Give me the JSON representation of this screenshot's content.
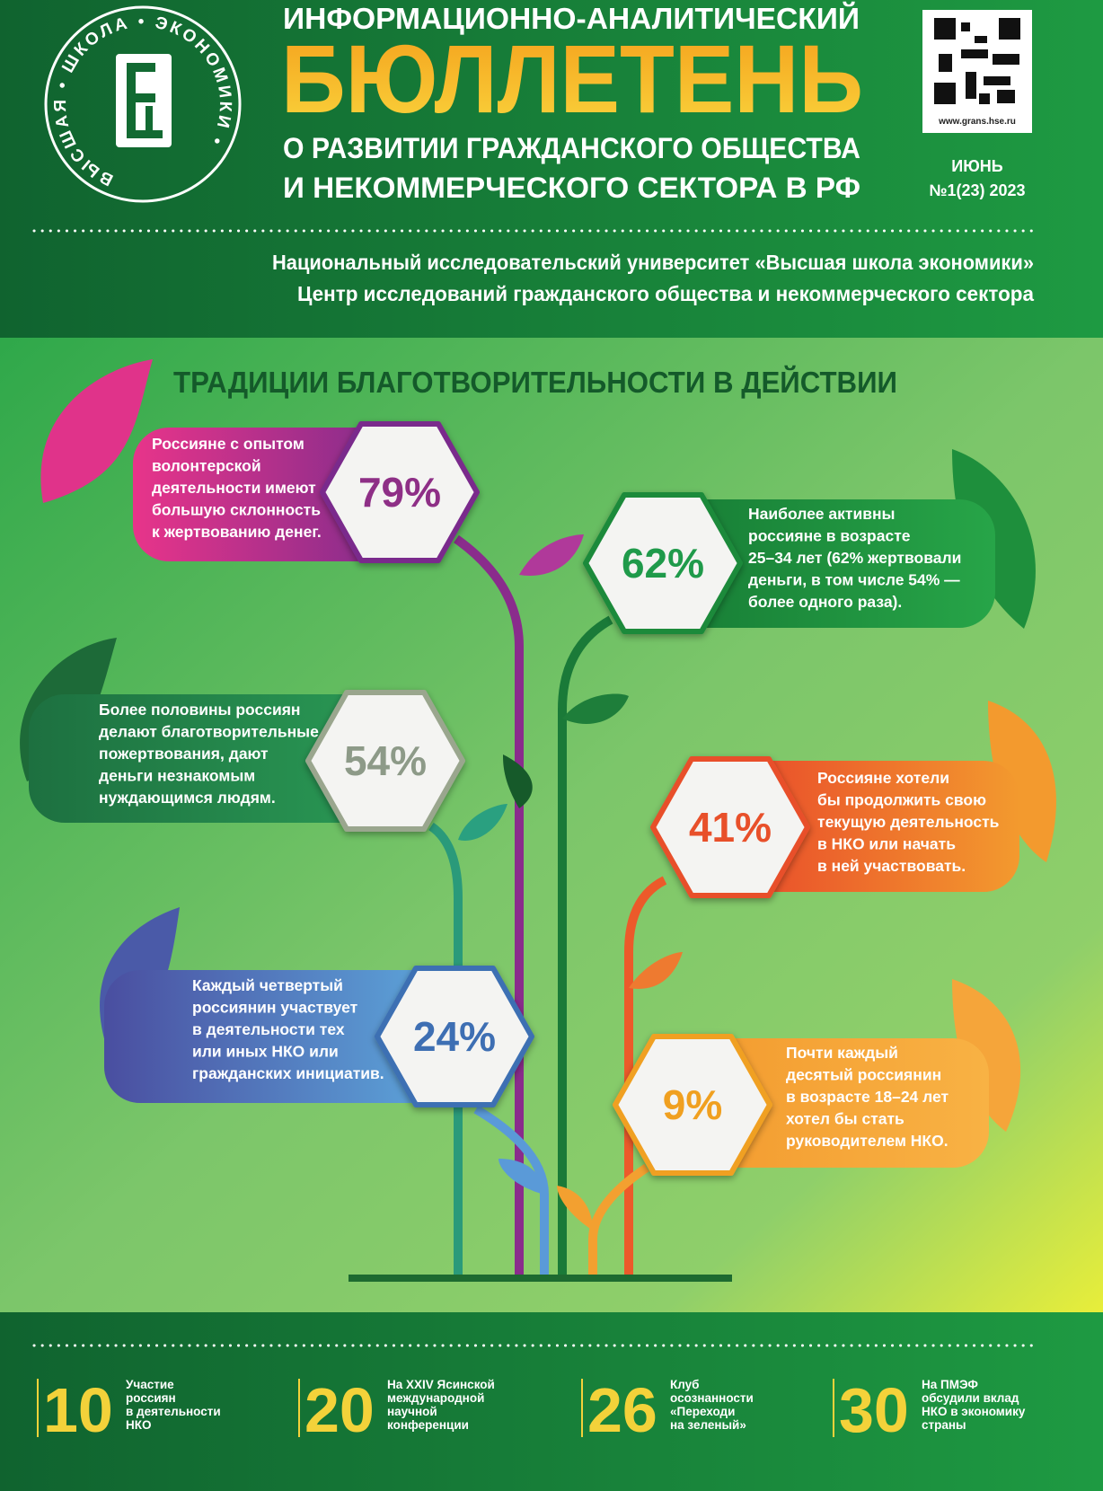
{
  "header": {
    "logo_ring": "ВЫСШАЯ • ШКОЛА • ЭКОНОМИКИ •",
    "title_line1": "ИНФОРМАЦИОННО-АНАЛИТИЧЕСКИЙ",
    "title_main": "БЮЛЛЕТЕНЬ",
    "subtitle_lines": [
      "О РАЗВИТИИ ГРАЖДАНСКОГО ОБЩЕСТВА",
      "И НЕКОММЕРЧЕСКОГО СЕКТОРА В РФ"
    ],
    "website": "www.grans.hse.ru",
    "month": "ИЮНЬ",
    "issue": "№1(23) 2023"
  },
  "institution_lines": [
    "Национальный исследовательский университет «Высшая школа экономики»",
    "Центр исследований гражданского общества и некоммерческого сектора"
  ],
  "section_title": "ТРАДИЦИИ БЛАГОТВОРИТЕЛЬНОСТИ В ДЕЙСТВИИ",
  "stats": [
    {
      "value": "79%",
      "text_lines": [
        "Россияне с опытом",
        "волонтерской",
        "деятельности имеют",
        "большую склонность",
        "к жертвованию денег."
      ]
    },
    {
      "value": "62%",
      "text_lines": [
        "Наиболее активны",
        "россияне в возрасте",
        "25–34 лет (62% жертвовали",
        "деньги, в том числе 54% —",
        "более одного раза)."
      ]
    },
    {
      "value": "54%",
      "text_lines": [
        "Более половины россиян",
        "делают благотворительные",
        "пожертвования, дают",
        "деньги незнакомым",
        "нуждающимся людям."
      ]
    },
    {
      "value": "41%",
      "text_lines": [
        "Россияне хотели",
        "бы продолжить свою",
        "текущую деятельность",
        "в НКО или начать",
        "в ней участвовать."
      ]
    },
    {
      "value": "24%",
      "text_lines": [
        "Каждый четвертый",
        "россиянин участвует",
        "в деятельности тех",
        "или иных НКО или",
        "гражданских инициатив."
      ]
    },
    {
      "value": "9%",
      "text_lines": [
        "Почти каждый",
        "десятый россиянин",
        "в возрасте 18–24 лет",
        "хотел бы стать",
        "руководителем НКО."
      ]
    }
  ],
  "contents": [
    {
      "page": 10,
      "text_lines": [
        "Участие",
        "россиян",
        "в деятельности",
        "НКО"
      ]
    },
    {
      "page": 20,
      "text_lines": [
        "На XXIV Ясинской",
        "международной",
        "научной",
        "конференции"
      ]
    },
    {
      "page": 26,
      "text_lines": [
        "Клуб",
        "осознанности",
        "«Переходи",
        "на зеленый»"
      ]
    },
    {
      "page": 30,
      "text_lines": [
        "На ПМЭФ",
        "обсудили вклад",
        "НКО в экономику",
        "страны"
      ]
    }
  ]
}
